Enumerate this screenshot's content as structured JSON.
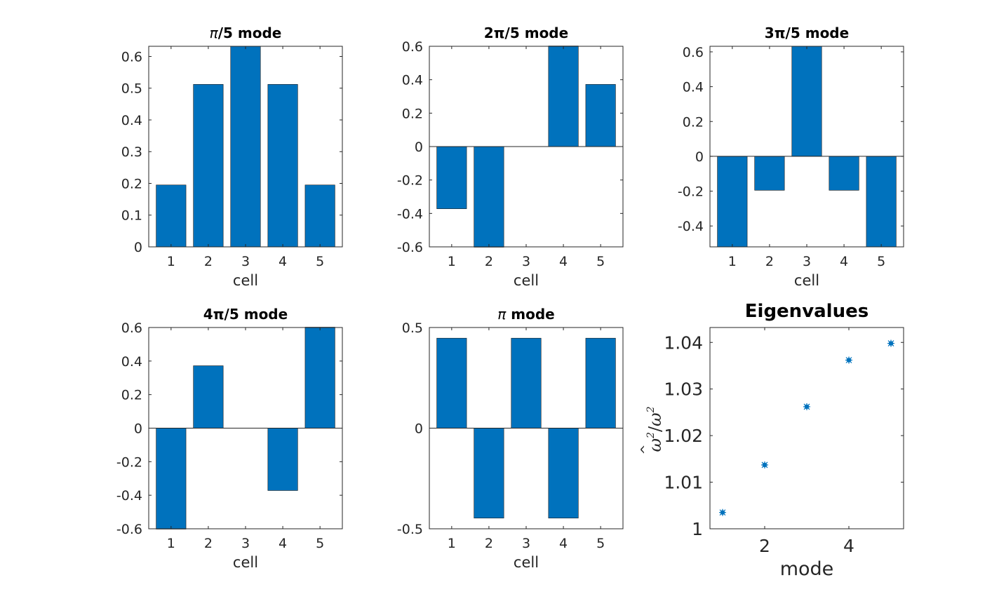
{
  "figure": {
    "background": "#ffffff",
    "bar_color": "#0072bd",
    "marker_color": "#0072bd"
  },
  "chart_data": [
    {
      "id": "mode1",
      "type": "bar",
      "title_prefix": "π",
      "title_suffix": "/5 mode",
      "categories": [
        "1",
        "2",
        "3",
        "4",
        "5"
      ],
      "values": [
        0.195,
        0.512,
        0.632,
        0.512,
        0.195
      ],
      "xlabel": "cell",
      "ylabel": "",
      "ylim": [
        0,
        0.632
      ],
      "yticks": [
        0,
        0.1,
        0.2,
        0.3,
        0.4,
        0.5,
        0.6
      ],
      "ytick_labels": [
        "0",
        "0.1",
        "0.2",
        "0.3",
        "0.4",
        "0.5",
        "0.6"
      ]
    },
    {
      "id": "mode2",
      "type": "bar",
      "title_prefix": "2π",
      "title_suffix": "/5 mode",
      "categories": [
        "1",
        "2",
        "3",
        "4",
        "5"
      ],
      "values": [
        -0.372,
        -0.602,
        0.0,
        0.602,
        0.372
      ],
      "xlabel": "cell",
      "ylabel": "",
      "ylim": [
        -0.6,
        0.6
      ],
      "yticks": [
        -0.6,
        -0.4,
        -0.2,
        0,
        0.2,
        0.4,
        0.6
      ],
      "ytick_labels": [
        "-0.6",
        "-0.4",
        "-0.2",
        "0",
        "0.2",
        "0.4",
        "0.6"
      ]
    },
    {
      "id": "mode3",
      "type": "bar",
      "title_prefix": "3π",
      "title_suffix": "/5 mode",
      "categories": [
        "1",
        "2",
        "3",
        "4",
        "5"
      ],
      "values": [
        -0.52,
        -0.195,
        0.632,
        -0.195,
        -0.52
      ],
      "xlabel": "cell",
      "ylabel": "",
      "ylim": [
        -0.52,
        0.632
      ],
      "yticks": [
        -0.4,
        -0.2,
        0,
        0.2,
        0.4,
        0.6
      ],
      "ytick_labels": [
        "-0.4",
        "-0.2",
        "0",
        "0.2",
        "0.4",
        "0.6"
      ]
    },
    {
      "id": "mode4",
      "type": "bar",
      "title_prefix": "4π",
      "title_suffix": "/5 mode",
      "categories": [
        "1",
        "2",
        "3",
        "4",
        "5"
      ],
      "values": [
        -0.602,
        0.372,
        0.0,
        -0.372,
        0.602
      ],
      "xlabel": "cell",
      "ylabel": "",
      "ylim": [
        -0.6,
        0.6
      ],
      "yticks": [
        -0.6,
        -0.4,
        -0.2,
        0,
        0.2,
        0.4,
        0.6
      ],
      "ytick_labels": [
        "-0.6",
        "-0.4",
        "-0.2",
        "0",
        "0.2",
        "0.4",
        "0.6"
      ]
    },
    {
      "id": "mode5",
      "type": "bar",
      "title_prefix": "π",
      "title_suffix": " mode",
      "categories": [
        "1",
        "2",
        "3",
        "4",
        "5"
      ],
      "values": [
        0.447,
        -0.447,
        0.447,
        -0.447,
        0.447
      ],
      "xlabel": "cell",
      "ylabel": "",
      "ylim": [
        -0.5,
        0.5
      ],
      "yticks": [
        -0.5,
        0,
        0.5
      ],
      "ytick_labels": [
        "-0.5",
        "0",
        "0.5"
      ]
    },
    {
      "id": "eig",
      "type": "scatter",
      "title": "Eigenvalues",
      "x": [
        1,
        2,
        3,
        4,
        5
      ],
      "y": [
        1.0035,
        1.0137,
        1.0262,
        1.0362,
        1.0398
      ],
      "xlabel": "mode",
      "ylabel_base": "ω",
      "ylabel_hat": "^",
      "ylabel_sup": "2",
      "ylabel_slash": "/",
      "xlim": [
        0.7,
        5.3
      ],
      "ylim": [
        1.0,
        1.0432
      ],
      "xticks": [
        2,
        4
      ],
      "xtick_labels": [
        "2",
        "4"
      ],
      "yticks": [
        1.0,
        1.01,
        1.02,
        1.03,
        1.04
      ],
      "ytick_labels": [
        "1",
        "1.01",
        "1.02",
        "1.03",
        "1.04"
      ]
    }
  ]
}
